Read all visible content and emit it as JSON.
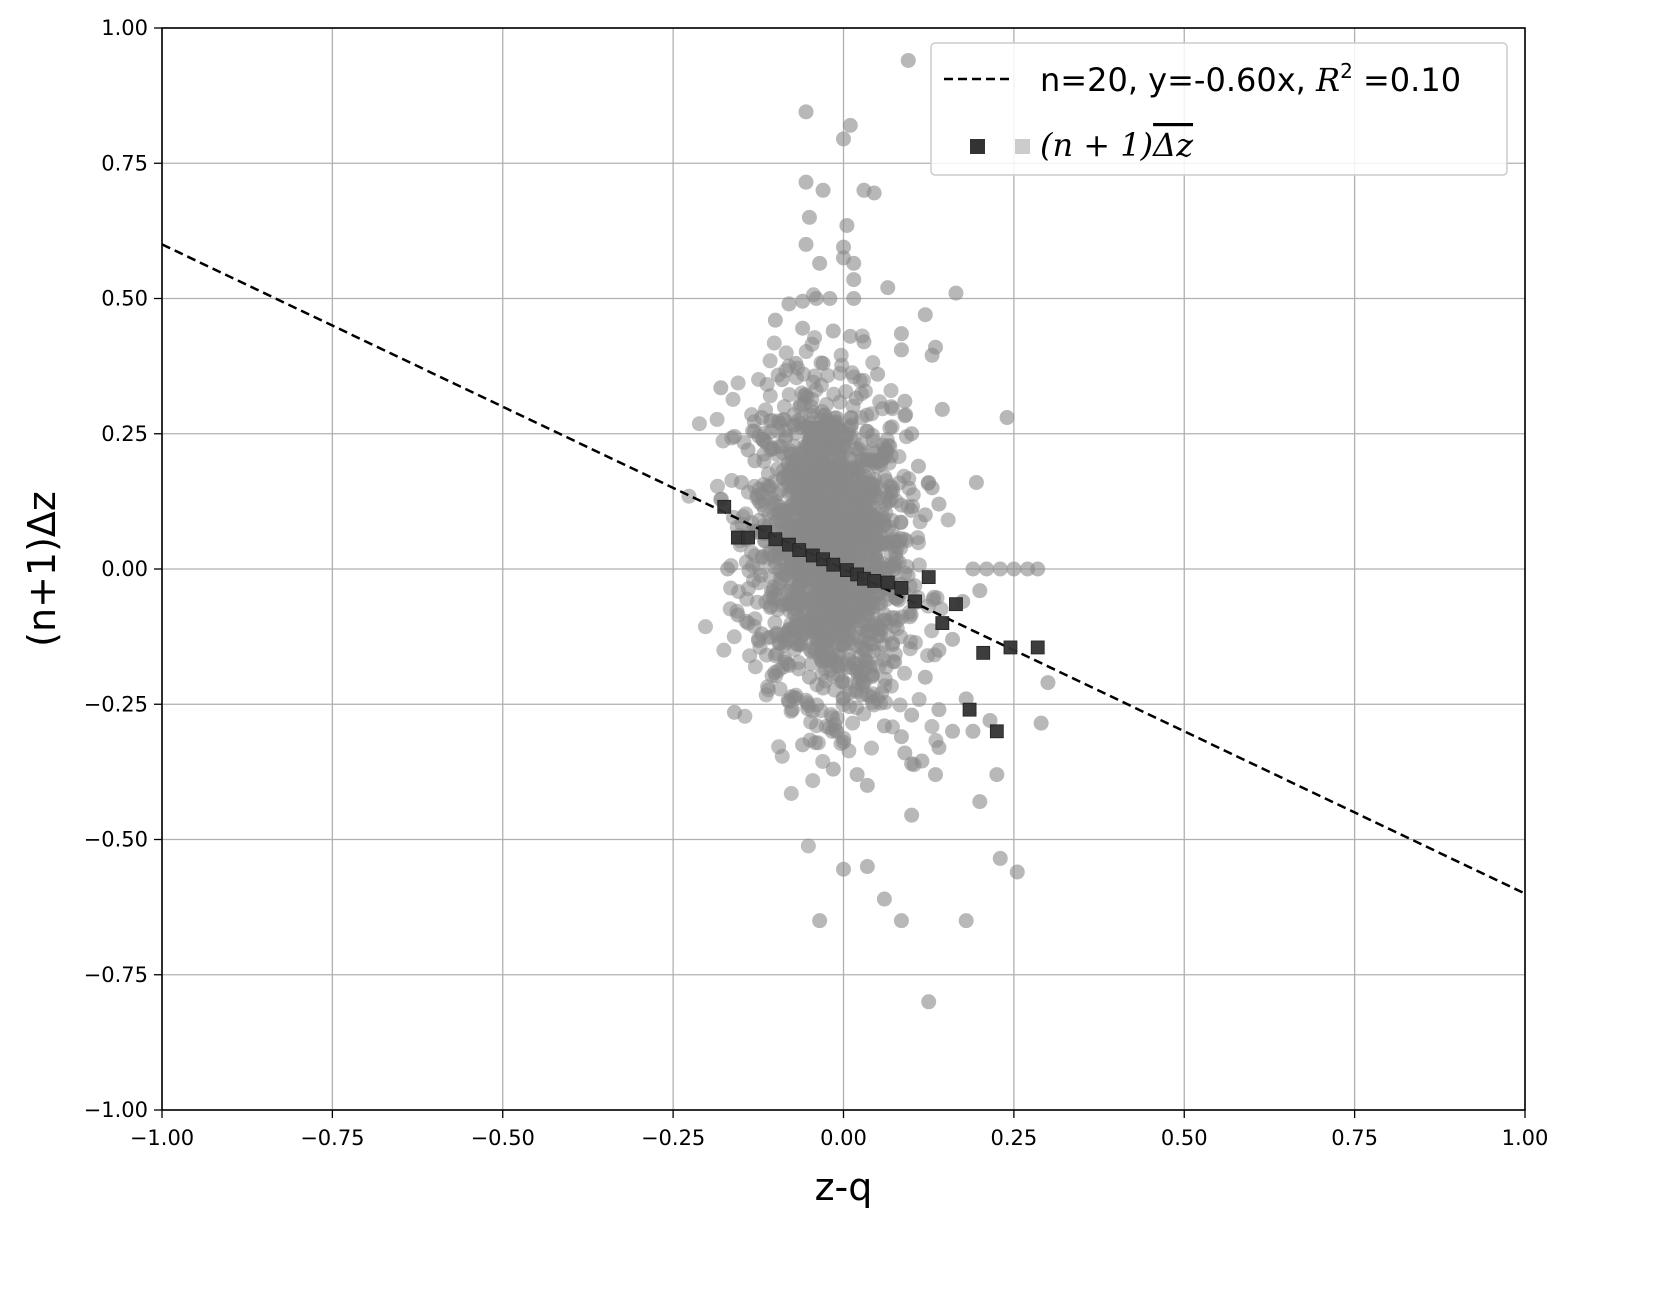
{
  "chart_data": {
    "type": "scatter",
    "xlabel": "z-q",
    "ylabel": "(n+1)Δz",
    "xlim": [
      -1.0,
      1.0
    ],
    "ylim": [
      -1.0,
      1.0
    ],
    "xticks": [
      "−1.00",
      "−0.75",
      "−0.50",
      "−0.25",
      "0.00",
      "0.25",
      "0.50",
      "0.75",
      "1.00"
    ],
    "yticks": [
      "−1.00",
      "−0.75",
      "−0.50",
      "−0.25",
      "0.00",
      "0.25",
      "0.50",
      "0.75",
      "1.00"
    ],
    "grid": true,
    "legend_position": "top-right",
    "fit_line": {
      "label_prefix": "n=20, y=-0.60x, ",
      "label_r": "R",
      "label_sup": "2",
      "label_suffix": " =0.10",
      "slope": -0.6,
      "intercept": 0.0,
      "style": "dashed",
      "color": "#000000"
    },
    "binned_series": {
      "label_math": "(n + 1)",
      "label_overline": "Δz",
      "marker": "square",
      "color": "#333333",
      "points": [
        [
          -0.175,
          0.115
        ],
        [
          -0.155,
          0.058
        ],
        [
          -0.14,
          0.058
        ],
        [
          -0.115,
          0.068
        ],
        [
          -0.1,
          0.055
        ],
        [
          -0.08,
          0.045
        ],
        [
          -0.065,
          0.035
        ],
        [
          -0.045,
          0.025
        ],
        [
          -0.03,
          0.018
        ],
        [
          -0.015,
          0.008
        ],
        [
          0.005,
          -0.002
        ],
        [
          0.02,
          -0.01
        ],
        [
          0.03,
          -0.018
        ],
        [
          0.045,
          -0.022
        ],
        [
          0.065,
          -0.025
        ],
        [
          0.085,
          -0.035
        ],
        [
          0.105,
          -0.06
        ],
        [
          0.125,
          -0.015
        ],
        [
          0.145,
          -0.1
        ],
        [
          0.165,
          -0.065
        ],
        [
          0.185,
          -0.26
        ],
        [
          0.205,
          -0.155
        ],
        [
          0.245,
          -0.145
        ],
        [
          0.225,
          -0.3
        ],
        [
          0.285,
          -0.145
        ]
      ]
    },
    "raw_series": {
      "marker": "circle",
      "color": "#888888",
      "outliers": [
        [
          0.095,
          0.94
        ],
        [
          -0.055,
          0.845
        ],
        [
          0.01,
          0.82
        ],
        [
          0.0,
          0.795
        ],
        [
          -0.055,
          0.715
        ],
        [
          -0.03,
          0.7
        ],
        [
          0.03,
          0.7
        ],
        [
          0.045,
          0.695
        ],
        [
          -0.05,
          0.65
        ],
        [
          0.005,
          0.635
        ],
        [
          -0.055,
          0.6
        ],
        [
          0.0,
          0.595
        ],
        [
          -0.035,
          0.565
        ],
        [
          0.015,
          0.565
        ],
        [
          0.0,
          0.575
        ],
        [
          0.015,
          0.535
        ],
        [
          0.065,
          0.52
        ],
        [
          0.165,
          0.51
        ],
        [
          -0.04,
          0.5
        ],
        [
          -0.02,
          0.5
        ],
        [
          0.015,
          0.5
        ],
        [
          -0.08,
          0.49
        ],
        [
          -0.06,
          0.495
        ],
        [
          0.12,
          0.47
        ],
        [
          -0.1,
          0.46
        ],
        [
          -0.06,
          0.445
        ],
        [
          -0.015,
          0.44
        ],
        [
          0.085,
          0.435
        ],
        [
          0.135,
          0.41
        ],
        [
          0.13,
          0.395
        ],
        [
          0.085,
          0.405
        ],
        [
          -0.18,
          0.335
        ],
        [
          0.24,
          0.28
        ],
        [
          0.145,
          0.295
        ],
        [
          0.09,
          0.31
        ],
        [
          0.195,
          0.16
        ],
        [
          0.125,
          0.16
        ],
        [
          -0.16,
          0.245
        ],
        [
          -0.17,
          0.0
        ],
        [
          -0.155,
          -0.085
        ],
        [
          -0.16,
          -0.265
        ],
        [
          0.27,
          0.0
        ],
        [
          0.25,
          0.0
        ],
        [
          0.23,
          0.0
        ],
        [
          0.21,
          0.0
        ],
        [
          0.19,
          0.0
        ],
        [
          0.285,
          0.0
        ],
        [
          0.2,
          -0.04
        ],
        [
          0.175,
          -0.06
        ],
        [
          0.3,
          -0.21
        ],
        [
          0.29,
          -0.285
        ],
        [
          0.18,
          -0.24
        ],
        [
          0.215,
          -0.28
        ],
        [
          0.19,
          -0.3
        ],
        [
          0.225,
          -0.38
        ],
        [
          0.2,
          -0.43
        ],
        [
          0.1,
          -0.455
        ],
        [
          0.135,
          -0.38
        ],
        [
          0.14,
          -0.33
        ],
        [
          0.115,
          -0.355
        ],
        [
          0.16,
          -0.3
        ],
        [
          0.23,
          -0.535
        ],
        [
          0.255,
          -0.56
        ],
        [
          0.0,
          -0.555
        ],
        [
          0.035,
          -0.55
        ],
        [
          0.06,
          -0.61
        ],
        [
          -0.035,
          -0.65
        ],
        [
          0.085,
          -0.65
        ],
        [
          0.18,
          -0.65
        ],
        [
          0.125,
          -0.8
        ],
        [
          -0.015,
          -0.37
        ],
        [
          0.02,
          -0.38
        ],
        [
          0.035,
          -0.4
        ],
        [
          0.0,
          -0.32
        ],
        [
          -0.01,
          -0.3
        ],
        [
          -0.06,
          -0.325
        ],
        [
          -0.075,
          -0.26
        ],
        [
          -0.08,
          -0.245
        ],
        [
          0.06,
          -0.29
        ],
        [
          0.09,
          -0.34
        ],
        [
          0.1,
          -0.36
        ],
        [
          0.085,
          -0.31
        ],
        [
          0.1,
          -0.27
        ],
        [
          0.14,
          -0.26
        ],
        [
          -0.12,
          -0.12
        ],
        [
          -0.1,
          -0.16
        ],
        [
          -0.14,
          -0.1
        ],
        [
          -0.05,
          -0.2
        ],
        [
          -0.03,
          -0.22
        ],
        [
          0.05,
          -0.24
        ],
        [
          0.12,
          -0.2
        ],
        [
          0.14,
          -0.15
        ],
        [
          0.16,
          -0.13
        ],
        [
          0.12,
          0.1
        ],
        [
          0.13,
          0.15
        ],
        [
          0.14,
          0.12
        ],
        [
          0.11,
          0.19
        ],
        [
          0.1,
          0.25
        ],
        [
          0.07,
          0.3
        ],
        [
          0.05,
          0.36
        ],
        [
          -0.12,
          0.28
        ],
        [
          -0.14,
          0.22
        ],
        [
          -0.15,
          0.16
        ],
        [
          -0.13,
          0.2
        ],
        [
          -0.09,
          0.35
        ],
        [
          -0.07,
          0.38
        ],
        [
          -0.03,
          0.38
        ],
        [
          0.03,
          0.42
        ],
        [
          0.01,
          0.43
        ]
      ],
      "core_center": [
        -0.02,
        0.04
      ],
      "core_spread": [
        0.055,
        0.14
      ],
      "core_count": 1800
    }
  }
}
